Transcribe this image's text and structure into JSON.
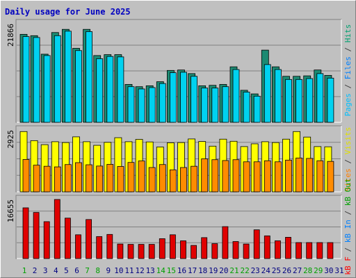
{
  "chart_data": {
    "type": "bar",
    "title": "Daily usage for June 2025",
    "days": [
      "1",
      "2",
      "3",
      "4",
      "5",
      "6",
      "7",
      "8",
      "9",
      "10",
      "11",
      "12",
      "13",
      "14",
      "15",
      "16",
      "17",
      "18",
      "19",
      "20",
      "21",
      "22",
      "23",
      "24",
      "25",
      "26",
      "27",
      "28",
      "29",
      "30",
      "31"
    ],
    "weekend_days": [
      "1",
      "7",
      "8",
      "14",
      "15",
      "21",
      "22",
      "28",
      "29"
    ],
    "panels": [
      {
        "id": "hits-files-pages",
        "max_label": "21866",
        "ymax": 21866,
        "legend": [
          {
            "text": "Pages",
            "color": "#00c0ff"
          },
          {
            "text": " / ",
            "color": "#404040"
          },
          {
            "text": "Files",
            "color": "#0080ff"
          },
          {
            "text": " / ",
            "color": "#404040"
          },
          {
            "text": "Hits",
            "color": "#00a070"
          }
        ],
        "series": [
          {
            "name": "Hits",
            "color": "#1c8a72",
            "values": [
              19500,
              19200,
              15100,
              19900,
              20600,
              16400,
              20600,
              14800,
              15000,
              15000,
              8400,
              7900,
              8100,
              9000,
              11500,
              11600,
              10800,
              8100,
              8200,
              8400,
              12300,
              7100,
              6300,
              16000,
              12300,
              10200,
              10200,
              10300,
              11600,
              10400
            ]
          },
          {
            "name": "Pages",
            "color": "#00d2f0",
            "values": [
              19000,
              18800,
              14800,
              19200,
              20200,
              15900,
              20100,
              14100,
              14600,
              14500,
              7900,
              7400,
              7700,
              8600,
              11000,
              11100,
              10200,
              7600,
              7600,
              7900,
              11700,
              6700,
              5800,
              12800,
              11700,
              9500,
              9500,
              9700,
              10800,
              9800
            ]
          }
        ]
      },
      {
        "id": "visits-sites",
        "max_label": "2925",
        "ymax": 2925,
        "legend": [
          {
            "text": "Sites",
            "color": "#ff8000"
          },
          {
            "text": " / ",
            "color": "#404040"
          },
          {
            "text": "Visits",
            "color": "#e0e000"
          }
        ],
        "series": [
          {
            "name": "Visits",
            "color": "#ffff00",
            "values": [
              2850,
              2420,
              2230,
              2370,
              2330,
              2600,
              2370,
              2200,
              2340,
              2560,
              2370,
              2480,
              2360,
              2120,
              2320,
              2330,
              2500,
              2380,
              2160,
              2490,
              2390,
              2140,
              2270,
              2370,
              2330,
              2490,
              2850,
              2590,
              2140,
              2130
            ]
          },
          {
            "name": "Sites",
            "color": "#ff8c00",
            "values": [
              1530,
              1260,
              1210,
              1180,
              1290,
              1380,
              1280,
              1220,
              1300,
              1200,
              1390,
              1460,
              1150,
              1290,
              1040,
              1150,
              1210,
              1560,
              1520,
              1480,
              1520,
              1420,
              1420,
              1470,
              1420,
              1500,
              1600,
              1580,
              1470,
              1440
            ]
          }
        ]
      },
      {
        "id": "kbytes",
        "max_label": "16655",
        "ymax": 16655,
        "legend": [
          {
            "text": "kB F",
            "color": "#ff0000"
          },
          {
            "text": " / ",
            "color": "#404040"
          },
          {
            "text": "kB In",
            "color": "#0080ff"
          },
          {
            "text": " / ",
            "color": "#404040"
          },
          {
            "text": "kB Out",
            "color": "#00a000"
          }
        ],
        "series": [
          {
            "name": "kB F",
            "color": "#e00000",
            "values": [
              14300,
              13000,
              10400,
              16655,
              11400,
              6700,
              11000,
              6200,
              6800,
              4100,
              4000,
              4000,
              4000,
              5600,
              6700,
              5000,
              3700,
              5900,
              4200,
              9000,
              4800,
              4100,
              8100,
              6400,
              5000,
              6000,
              4500,
              4500,
              4500,
              4500
            ]
          }
        ]
      }
    ]
  }
}
